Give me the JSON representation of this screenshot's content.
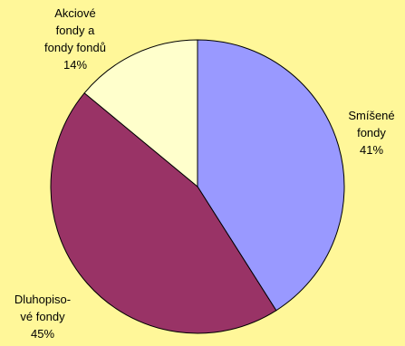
{
  "chart_data": {
    "type": "pie",
    "title": "",
    "slices": [
      {
        "label_lines": [
          "Smíšené",
          "fondy"
        ],
        "percent_label": "41%",
        "value": 41,
        "color": "#9999FF"
      },
      {
        "label_lines": [
          "Dluhopiso-",
          "vé fondy"
        ],
        "percent_label": "45%",
        "value": 45,
        "color": "#993366"
      },
      {
        "label_lines": [
          "Akciové",
          "fondy a",
          "fondy fondů"
        ],
        "percent_label": "14%",
        "value": 14,
        "color": "#FFFFCC"
      }
    ],
    "legend": "none",
    "background_color": "#FFF799",
    "stroke_color": "#000000"
  }
}
